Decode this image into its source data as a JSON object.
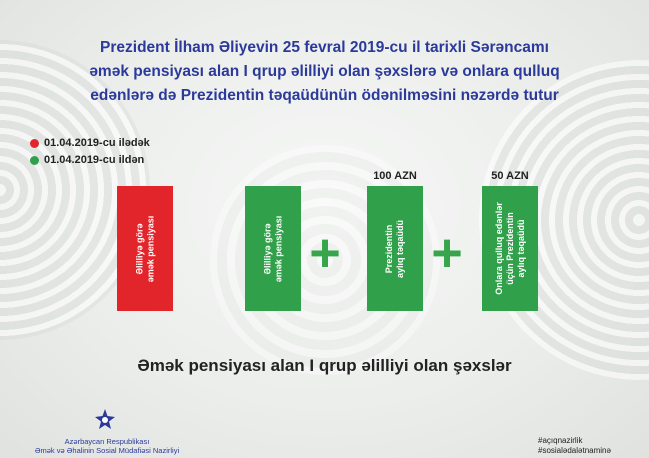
{
  "title": {
    "line1": "Prezident İlham Əliyevin 25 fevral 2019-cu il tarixli Sərəncamı",
    "line2": "əmək pensiyası alan I qrup əlilliyi olan şəxslərə və onlara qulluq",
    "line3": "edənlərə də Prezidentin təqaüdünün ödənilməsini nəzərdə tutur"
  },
  "legend": {
    "before": {
      "label": "01.04.2019-cu ilədək",
      "color": "#e2242b"
    },
    "after": {
      "label": "01.04.2019-cu ildən",
      "color": "#30a14a"
    }
  },
  "bars": [
    {
      "lines": [
        "Əlilliyə görə",
        "əmək pensiyası"
      ],
      "color": "#e2242b"
    },
    {
      "lines": [
        "Əlilliyə görə",
        "əmək pensiyası"
      ],
      "color": "#30a14a"
    },
    {
      "lines": [
        "Prezidentin",
        "aylıq təqaüdü"
      ],
      "amount": "100 AZN",
      "color": "#30a14a"
    },
    {
      "lines": [
        "Onlara qulluq edənlər",
        "üçün Prezidentin",
        "aylıq təqaüdü"
      ],
      "amount": "50 AZN",
      "color": "#30a14a"
    }
  ],
  "operators": {
    "plus": "+"
  },
  "caption": "Əmək pensiyası alan I qrup əlilliyi olan şəxslər",
  "organization": {
    "line1": "Azərbaycan Respublikası",
    "line2": "Əmək və Əhalinin Sosial Müdafiəsi Nazirliyi",
    "logo_icon": "ministry-emblem-icon"
  },
  "hashtags": [
    "#açıqnazirlik",
    "#sosialədalətnaminə"
  ]
}
